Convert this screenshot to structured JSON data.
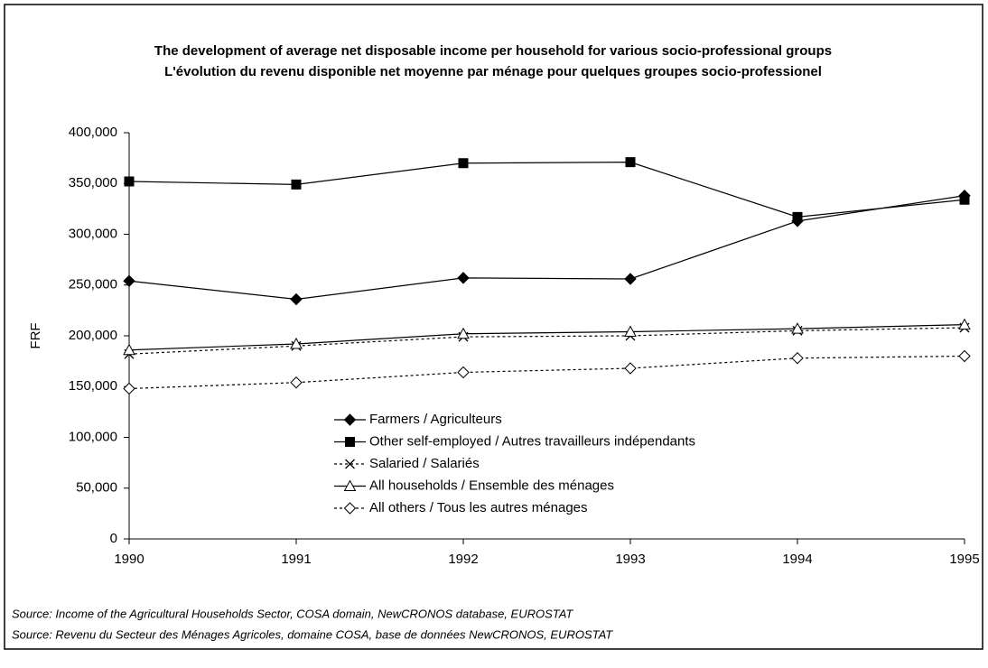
{
  "chart_data": {
    "type": "line",
    "title": "The development of average net disposable income per household for various socio-professional groups",
    "subtitle": "L'évolution du revenu disponible net moyenne par ménage pour quelques groupes socio-professionel",
    "y_label": "FRF",
    "source_lines": [
      "Source: Income of the Agricultural Households Sector, COSA domain, NewCRONOS database, EUROSTAT",
      "Source: Revenu du Secteur des Ménages Agricoles, domaine COSA, base de données NewCRONOS, EUROSTAT"
    ],
    "x": [
      1990,
      1991,
      1992,
      1993,
      1994,
      1995
    ],
    "xlim": [
      1990,
      1995
    ],
    "xticks": [
      1990,
      1991,
      1992,
      1993,
      1994,
      1995
    ],
    "ylim": [
      0,
      400000
    ],
    "yticks": [
      0,
      {
        "value": 50000,
        "label": "50,000"
      },
      {
        "value": 100000,
        "label": "100,000"
      },
      {
        "value": 150000,
        "label": "150,000"
      },
      {
        "value": 200000,
        "label": "200,000"
      },
      {
        "value": 250000,
        "label": "250,000"
      },
      {
        "value": 300000,
        "label": "300,000"
      },
      {
        "value": 350000,
        "label": "350,000"
      },
      {
        "value": 400000,
        "label": "400,000"
      }
    ],
    "series": [
      {
        "name": "Farmers / Agriculteurs",
        "color": "#000000",
        "marker": "diamond-filled",
        "dash": "solid",
        "values": [
          254000,
          236000,
          257000,
          256000,
          313000,
          338000
        ]
      },
      {
        "name": "Other self-employed / Autres travailleurs indépendants",
        "color": "#000000",
        "marker": "square-filled",
        "dash": "solid",
        "values": [
          352000,
          349000,
          370000,
          371000,
          317000,
          334000
        ]
      },
      {
        "name": "Salaried / Salariés",
        "color": "#000000",
        "marker": "x",
        "dash": "dashed",
        "values": [
          182000,
          190000,
          199000,
          200000,
          205000,
          208000
        ]
      },
      {
        "name": "All households / Ensemble des ménages",
        "color": "#000000",
        "marker": "triangle-open",
        "dash": "solid",
        "values": [
          186000,
          192000,
          202000,
          204000,
          207000,
          211000
        ]
      },
      {
        "name": "All others / Tous les autres ménages",
        "color": "#000000",
        "marker": "diamond-open",
        "dash": "dashed",
        "values": [
          148000,
          154000,
          164000,
          168000,
          178000,
          180000
        ]
      }
    ]
  }
}
